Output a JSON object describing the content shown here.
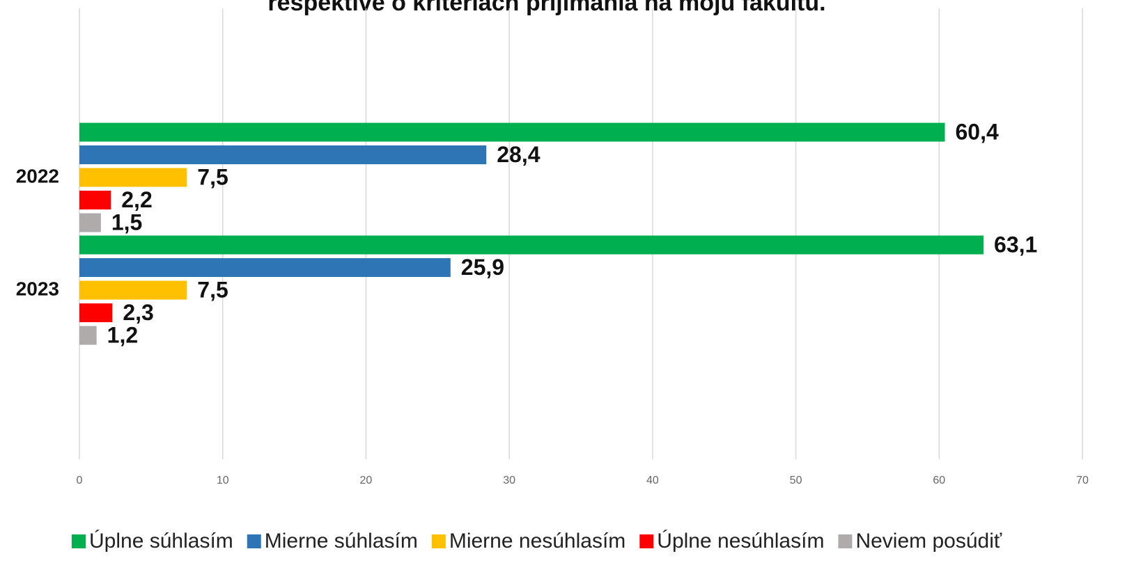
{
  "chart_data": {
    "type": "bar",
    "orientation": "horizontal",
    "title": "respektíve o kritériách prijímania na moju fakultu.",
    "categories": [
      "2022",
      "2023"
    ],
    "series": [
      {
        "name": "Úplne súhlasím",
        "color": "#00b050",
        "values": [
          60.4,
          63.1
        ],
        "value_labels": [
          "60,4",
          "63,1"
        ]
      },
      {
        "name": "Mierne súhlasím",
        "color": "#2e75b6",
        "values": [
          28.4,
          25.9
        ],
        "value_labels": [
          "28,4",
          "25,9"
        ]
      },
      {
        "name": "Mierne nesúhlasím",
        "color": "#ffc000",
        "values": [
          7.5,
          7.5
        ],
        "value_labels": [
          "7,5",
          "7,5"
        ]
      },
      {
        "name": "Úplne nesúhlasím",
        "color": "#ff0000",
        "values": [
          2.2,
          2.3
        ],
        "value_labels": [
          "2,2",
          "2,3"
        ]
      },
      {
        "name": "Neviem posúdiť",
        "color": "#afabab",
        "values": [
          1.5,
          1.2
        ],
        "value_labels": [
          "1,5",
          "1,2"
        ]
      }
    ],
    "xlim": [
      0,
      70
    ],
    "xticks": [
      0,
      10,
      20,
      30,
      40,
      50,
      60,
      70
    ],
    "grid": true,
    "legend": "bottom"
  }
}
